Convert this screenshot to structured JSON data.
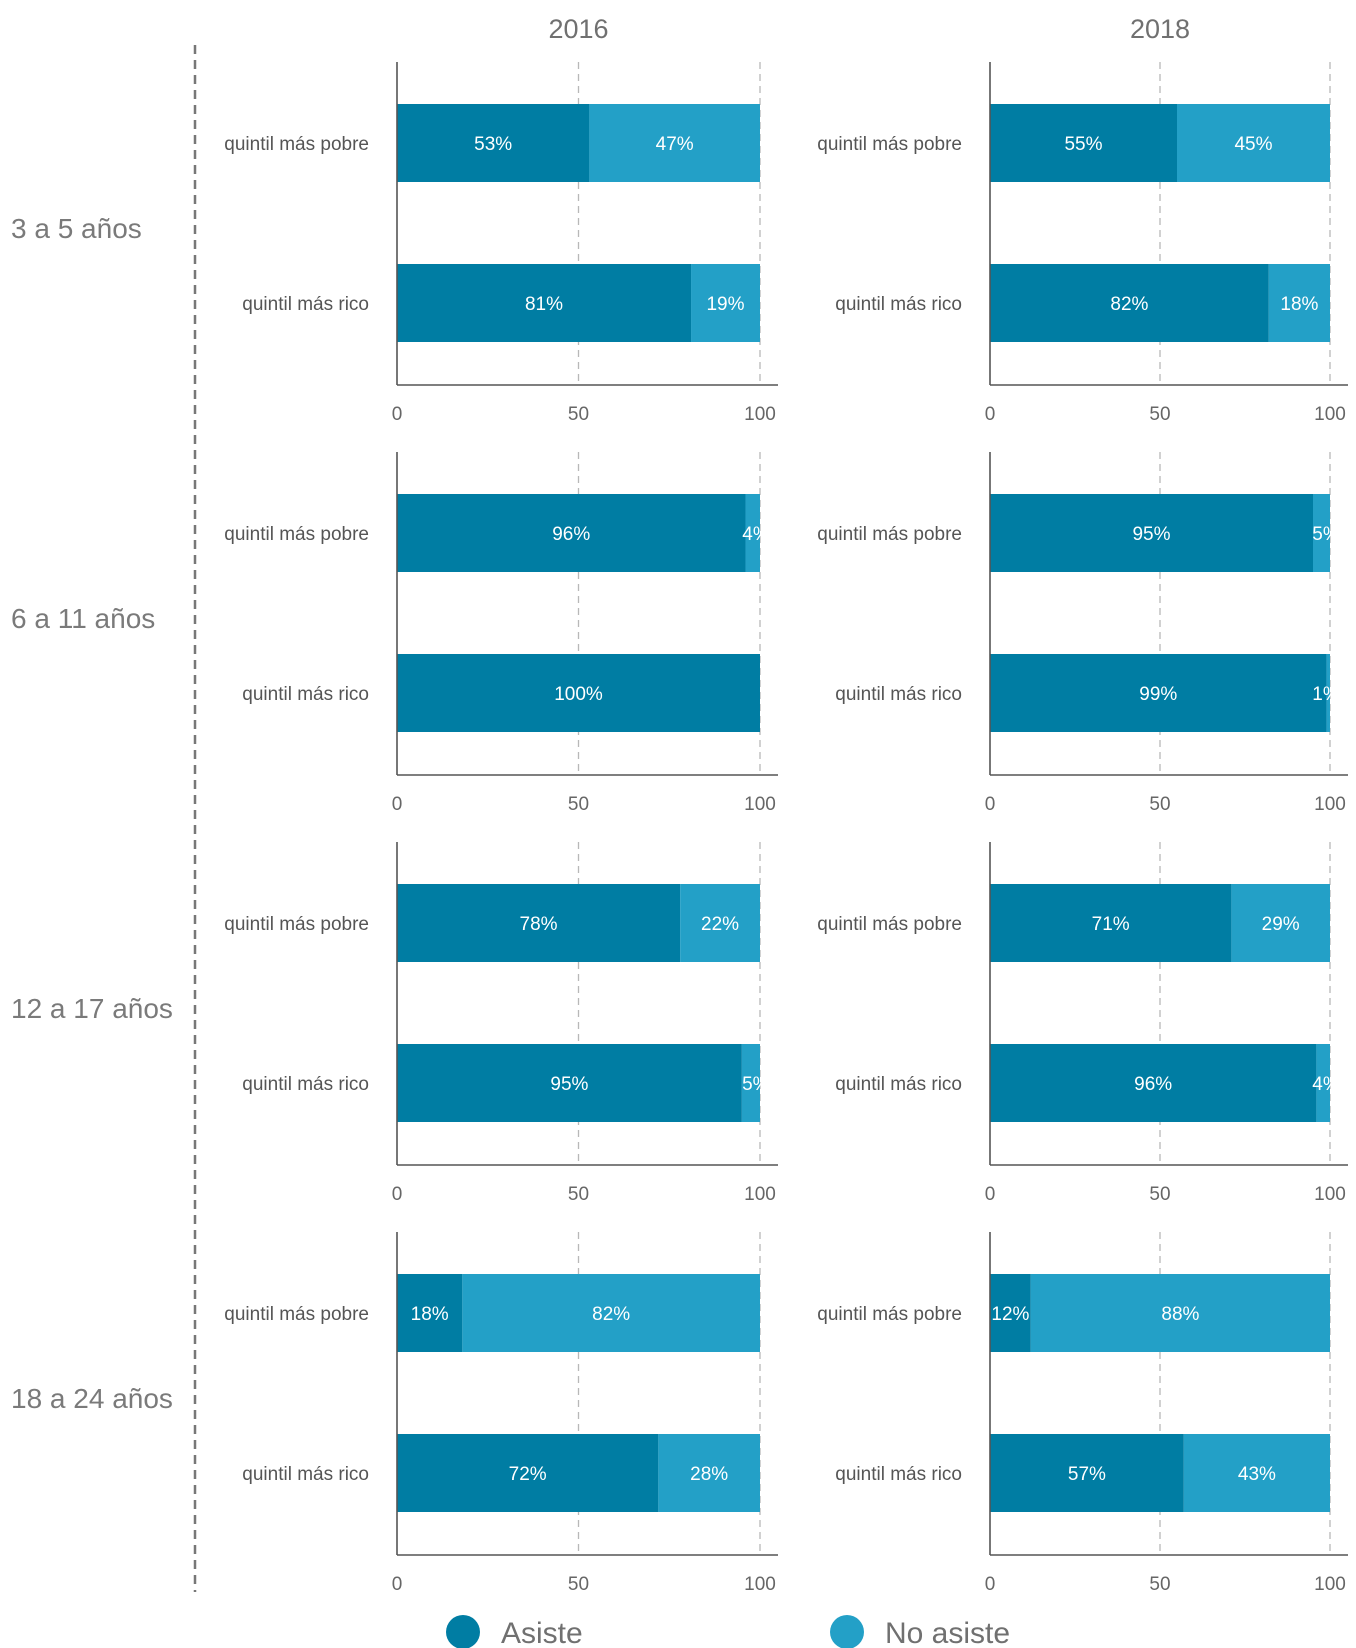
{
  "colors": {
    "asiste": "#007da3",
    "no_asiste": "#23a0c7"
  },
  "chart_data": {
    "type": "bar",
    "stacked": true,
    "orientation": "horizontal",
    "columns": [
      "2016",
      "2018"
    ],
    "rows": [
      "3 a 5 años",
      "6 a 11 años",
      "12 a 17 años",
      "18 a 24 años"
    ],
    "categories": [
      "quintil más pobre",
      "quintil más rico"
    ],
    "series_names": [
      "Asiste",
      "No asiste"
    ],
    "xlim": [
      0,
      100
    ],
    "xticks": [
      "0",
      "50",
      "100"
    ],
    "grid": true,
    "legend_position": "bottom",
    "panels": [
      {
        "row": "3 a 5 años",
        "year": "2016",
        "asiste": [
          53,
          81
        ],
        "no_asiste": [
          47,
          19
        ]
      },
      {
        "row": "3 a 5 años",
        "year": "2018",
        "asiste": [
          55,
          82
        ],
        "no_asiste": [
          45,
          18
        ]
      },
      {
        "row": "6 a 11 años",
        "year": "2016",
        "asiste": [
          96,
          100
        ],
        "no_asiste": [
          4,
          0
        ]
      },
      {
        "row": "6 a 11 años",
        "year": "2018",
        "asiste": [
          95,
          99
        ],
        "no_asiste": [
          5,
          1
        ]
      },
      {
        "row": "12 a 17 años",
        "year": "2016",
        "asiste": [
          78,
          95
        ],
        "no_asiste": [
          22,
          5
        ]
      },
      {
        "row": "12 a 17 años",
        "year": "2018",
        "asiste": [
          71,
          96
        ],
        "no_asiste": [
          29,
          4
        ]
      },
      {
        "row": "18 a 24 años",
        "year": "2016",
        "asiste": [
          18,
          72
        ],
        "no_asiste": [
          82,
          28
        ]
      },
      {
        "row": "18 a 24 años",
        "year": "2018",
        "asiste": [
          12,
          57
        ],
        "no_asiste": [
          88,
          43
        ]
      }
    ]
  }
}
